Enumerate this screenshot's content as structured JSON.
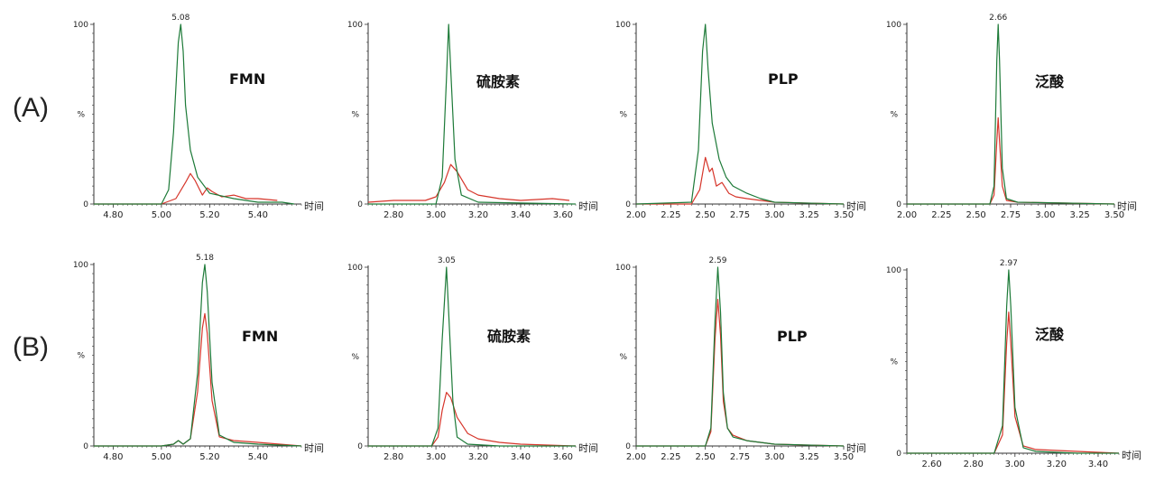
{
  "row_labels": [
    "(A)",
    "(B)"
  ],
  "colors": {
    "series1": "#1d7a38",
    "series2": "#d6352a",
    "axis": "#333333"
  },
  "chart_data": [
    {
      "type": "line",
      "row": "A",
      "compound": "FMN",
      "ylabel": "%",
      "xlabel": "时间",
      "ylim": [
        0,
        100
      ],
      "xlim": [
        4.72,
        5.58
      ],
      "xticks": [
        {
          "v": 4.8,
          "t": "4.80"
        },
        {
          "v": 5.0,
          "t": "5.00"
        },
        {
          "v": 5.2,
          "t": "5.20"
        },
        {
          "v": 5.4,
          "t": "5.40"
        }
      ],
      "yticks": [
        {
          "v": 0,
          "t": "0"
        },
        {
          "v": 100,
          "t": "100"
        }
      ],
      "peak_annotation": {
        "x": 5.08,
        "text": "5.08"
      },
      "series": [
        {
          "name": "green",
          "x": [
            4.72,
            5.0,
            5.03,
            5.05,
            5.07,
            5.08,
            5.09,
            5.1,
            5.12,
            5.15,
            5.2,
            5.3,
            5.4,
            5.5,
            5.55
          ],
          "y": [
            0,
            0,
            8,
            40,
            90,
            100,
            85,
            55,
            30,
            15,
            6,
            3,
            1,
            1,
            0
          ]
        },
        {
          "name": "red",
          "x": [
            4.72,
            5.0,
            5.06,
            5.1,
            5.12,
            5.14,
            5.17,
            5.19,
            5.21,
            5.25,
            5.3,
            5.35,
            5.4,
            5.48
          ],
          "y": [
            0,
            0,
            3,
            12,
            17,
            13,
            5,
            9,
            7,
            4,
            5,
            3,
            3,
            2
          ]
        }
      ]
    },
    {
      "type": "line",
      "row": "A",
      "compound": "硫胺素",
      "ylabel": "%",
      "xlabel": "时间",
      "ylim": [
        0,
        100
      ],
      "xlim": [
        2.68,
        3.66
      ],
      "xticks": [
        {
          "v": 2.8,
          "t": "2.80"
        },
        {
          "v": 3.0,
          "t": "3.00"
        },
        {
          "v": 3.2,
          "t": "3.20"
        },
        {
          "v": 3.4,
          "t": "3.40"
        },
        {
          "v": 3.6,
          "t": "3.60"
        }
      ],
      "yticks": [
        {
          "v": 0,
          "t": "0"
        },
        {
          "v": 100,
          "t": "100"
        }
      ],
      "peak_annotation": null,
      "series": [
        {
          "name": "green",
          "x": [
            2.68,
            3.0,
            3.03,
            3.05,
            3.06,
            3.07,
            3.09,
            3.12,
            3.2,
            3.66
          ],
          "y": [
            0,
            0,
            15,
            70,
            100,
            75,
            25,
            5,
            1,
            0
          ]
        },
        {
          "name": "red",
          "x": [
            2.68,
            2.8,
            2.95,
            3.0,
            3.04,
            3.07,
            3.1,
            3.15,
            3.2,
            3.3,
            3.4,
            3.55,
            3.63
          ],
          "y": [
            1,
            2,
            2,
            4,
            12,
            22,
            18,
            8,
            5,
            3,
            2,
            3,
            2
          ]
        }
      ]
    },
    {
      "type": "line",
      "row": "A",
      "compound": "PLP",
      "ylabel": "%",
      "xlabel": "时间",
      "ylim": [
        0,
        100
      ],
      "xlim": [
        2.0,
        3.5
      ],
      "xticks": [
        {
          "v": 2.0,
          "t": "2.00"
        },
        {
          "v": 2.25,
          "t": "2.25"
        },
        {
          "v": 2.5,
          "t": "2.50"
        },
        {
          "v": 2.75,
          "t": "2.75"
        },
        {
          "v": 3.0,
          "t": "3.00"
        },
        {
          "v": 3.25,
          "t": "3.25"
        },
        {
          "v": 3.5,
          "t": "3.50"
        }
      ],
      "yticks": [
        {
          "v": 0,
          "t": "0"
        },
        {
          "v": 100,
          "t": "100"
        }
      ],
      "peak_annotation": null,
      "series": [
        {
          "name": "green",
          "x": [
            2.0,
            2.4,
            2.45,
            2.48,
            2.5,
            2.52,
            2.55,
            2.6,
            2.65,
            2.7,
            2.8,
            2.9,
            3.0,
            3.5
          ],
          "y": [
            0,
            1,
            30,
            85,
            100,
            75,
            45,
            25,
            15,
            10,
            6,
            3,
            1,
            0
          ]
        },
        {
          "name": "red",
          "x": [
            2.0,
            2.4,
            2.46,
            2.5,
            2.53,
            2.55,
            2.58,
            2.62,
            2.67,
            2.72,
            2.8,
            2.9,
            3.0,
            3.5
          ],
          "y": [
            0,
            0,
            8,
            26,
            18,
            20,
            10,
            12,
            6,
            4,
            3,
            2,
            1,
            0
          ]
        }
      ]
    },
    {
      "type": "line",
      "row": "A",
      "compound": "泛酸",
      "ylabel": "%",
      "xlabel": "时间",
      "ylim": [
        0,
        100
      ],
      "xlim": [
        2.0,
        3.5
      ],
      "xticks": [
        {
          "v": 2.0,
          "t": "2.00"
        },
        {
          "v": 2.25,
          "t": "2.25"
        },
        {
          "v": 2.5,
          "t": "2.50"
        },
        {
          "v": 2.75,
          "t": "2.75"
        },
        {
          "v": 3.0,
          "t": "3.00"
        },
        {
          "v": 3.25,
          "t": "3.25"
        },
        {
          "v": 3.5,
          "t": "3.50"
        }
      ],
      "yticks": [
        {
          "v": 0,
          "t": "0"
        },
        {
          "v": 100,
          "t": "100"
        }
      ],
      "peak_annotation": {
        "x": 2.66,
        "text": "2.66"
      },
      "series": [
        {
          "name": "green",
          "x": [
            2.0,
            2.6,
            2.63,
            2.65,
            2.66,
            2.67,
            2.69,
            2.72,
            2.8,
            3.5
          ],
          "y": [
            0,
            0,
            10,
            80,
            100,
            80,
            20,
            3,
            1,
            0
          ]
        },
        {
          "name": "red",
          "x": [
            2.0,
            2.6,
            2.63,
            2.65,
            2.66,
            2.67,
            2.69,
            2.72,
            2.8,
            3.5
          ],
          "y": [
            0,
            0,
            5,
            35,
            48,
            35,
            10,
            2,
            1,
            0
          ]
        }
      ]
    },
    {
      "type": "line",
      "row": "B",
      "compound": "FMN",
      "ylabel": "%",
      "xlabel": "时间",
      "ylim": [
        0,
        100
      ],
      "xlim": [
        4.72,
        5.58
      ],
      "xticks": [
        {
          "v": 4.8,
          "t": "4.80"
        },
        {
          "v": 5.0,
          "t": "5.00"
        },
        {
          "v": 5.2,
          "t": "5.20"
        },
        {
          "v": 5.4,
          "t": "5.40"
        }
      ],
      "yticks": [
        {
          "v": 0,
          "t": "0"
        },
        {
          "v": 100,
          "t": "100"
        }
      ],
      "peak_annotation": {
        "x": 5.18,
        "text": "5.18"
      },
      "series": [
        {
          "name": "green",
          "x": [
            4.72,
            5.0,
            5.05,
            5.07,
            5.09,
            5.12,
            5.15,
            5.17,
            5.18,
            5.19,
            5.21,
            5.24,
            5.3,
            5.4,
            5.58
          ],
          "y": [
            0,
            0,
            1,
            3,
            1,
            4,
            40,
            90,
            100,
            85,
            35,
            6,
            2,
            1,
            0
          ]
        },
        {
          "name": "red",
          "x": [
            4.72,
            5.0,
            5.05,
            5.07,
            5.09,
            5.12,
            5.15,
            5.17,
            5.18,
            5.19,
            5.21,
            5.24,
            5.3,
            5.4,
            5.58
          ],
          "y": [
            0,
            0,
            1,
            3,
            1,
            4,
            30,
            65,
            73,
            62,
            25,
            5,
            3,
            2,
            0
          ]
        }
      ]
    },
    {
      "type": "line",
      "row": "B",
      "compound": "硫胺素",
      "ylabel": "%",
      "xlabel": "时间",
      "ylim": [
        0,
        100
      ],
      "xlim": [
        2.68,
        3.66
      ],
      "xticks": [
        {
          "v": 2.8,
          "t": "2.80"
        },
        {
          "v": 3.0,
          "t": "3.00"
        },
        {
          "v": 3.2,
          "t": "3.20"
        },
        {
          "v": 3.4,
          "t": "3.40"
        },
        {
          "v": 3.6,
          "t": "3.60"
        }
      ],
      "yticks": [
        {
          "v": 0,
          "t": "0"
        },
        {
          "v": 100,
          "t": "100"
        }
      ],
      "peak_annotation": {
        "x": 3.05,
        "text": "3.05"
      },
      "series": [
        {
          "name": "green",
          "x": [
            2.68,
            2.98,
            3.01,
            3.03,
            3.05,
            3.06,
            3.08,
            3.1,
            3.15,
            3.3,
            3.66
          ],
          "y": [
            0,
            0,
            10,
            60,
            100,
            75,
            25,
            5,
            1,
            0,
            0
          ]
        },
        {
          "name": "red",
          "x": [
            2.68,
            2.98,
            3.01,
            3.03,
            3.05,
            3.07,
            3.1,
            3.15,
            3.2,
            3.3,
            3.4,
            3.66
          ],
          "y": [
            0,
            0,
            5,
            20,
            30,
            27,
            16,
            7,
            4,
            2,
            1,
            0
          ]
        }
      ]
    },
    {
      "type": "line",
      "row": "B",
      "compound": "PLP",
      "ylabel": "%",
      "xlabel": "时间",
      "ylim": [
        0,
        100
      ],
      "xlim": [
        2.0,
        3.5
      ],
      "xticks": [
        {
          "v": 2.0,
          "t": "2.00"
        },
        {
          "v": 2.25,
          "t": "2.25"
        },
        {
          "v": 2.5,
          "t": "2.50"
        },
        {
          "v": 2.75,
          "t": "2.75"
        },
        {
          "v": 3.0,
          "t": "3.00"
        },
        {
          "v": 3.25,
          "t": "3.25"
        },
        {
          "v": 3.5,
          "t": "3.50"
        }
      ],
      "yticks": [
        {
          "v": 0,
          "t": "0"
        },
        {
          "v": 100,
          "t": "100"
        }
      ],
      "peak_annotation": {
        "x": 2.59,
        "text": "2.59"
      },
      "series": [
        {
          "name": "green",
          "x": [
            2.0,
            2.5,
            2.54,
            2.57,
            2.59,
            2.61,
            2.63,
            2.66,
            2.7,
            2.8,
            3.0,
            3.5
          ],
          "y": [
            0,
            0,
            10,
            70,
            100,
            75,
            30,
            10,
            5,
            3,
            1,
            0
          ]
        },
        {
          "name": "red",
          "x": [
            2.0,
            2.5,
            2.54,
            2.57,
            2.59,
            2.61,
            2.63,
            2.66,
            2.7,
            2.8,
            3.0,
            3.5
          ],
          "y": [
            0,
            0,
            8,
            60,
            82,
            62,
            25,
            10,
            6,
            3,
            1,
            0
          ]
        }
      ]
    },
    {
      "type": "line",
      "row": "B",
      "compound": "泛酸",
      "ylabel": "%",
      "xlabel": "时间",
      "ylim": [
        0,
        100
      ],
      "xlim": [
        2.48,
        3.5
      ],
      "xticks": [
        {
          "v": 2.6,
          "t": "2.60"
        },
        {
          "v": 2.8,
          "t": "2.80"
        },
        {
          "v": 3.0,
          "t": "3.00"
        },
        {
          "v": 3.2,
          "t": "3.20"
        },
        {
          "v": 3.4,
          "t": "3.40"
        }
      ],
      "yticks": [
        {
          "v": 0,
          "t": "0"
        },
        {
          "v": 100,
          "t": "100"
        }
      ],
      "peak_annotation": {
        "x": 2.97,
        "text": "2.97"
      },
      "series": [
        {
          "name": "green",
          "x": [
            2.48,
            2.9,
            2.94,
            2.96,
            2.97,
            2.98,
            3.0,
            3.04,
            3.1,
            3.3,
            3.5
          ],
          "y": [
            0,
            0,
            15,
            80,
            100,
            80,
            25,
            3,
            1,
            0,
            0
          ]
        },
        {
          "name": "red",
          "x": [
            2.48,
            2.9,
            2.94,
            2.96,
            2.97,
            2.98,
            3.0,
            3.04,
            3.1,
            3.3,
            3.5
          ],
          "y": [
            0,
            0,
            10,
            60,
            77,
            60,
            20,
            4,
            2,
            1,
            0
          ]
        }
      ]
    }
  ]
}
